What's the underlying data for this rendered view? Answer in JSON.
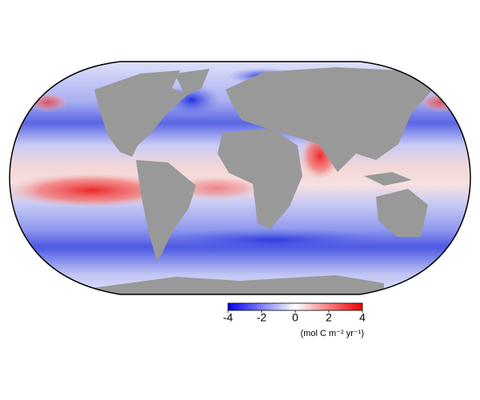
{
  "colorbar": {
    "lim": [
      -4,
      4
    ],
    "ticks": [
      -4,
      -2,
      0,
      2,
      4
    ],
    "label": "(mol C m⁻² yr⁻¹)"
  }
}
